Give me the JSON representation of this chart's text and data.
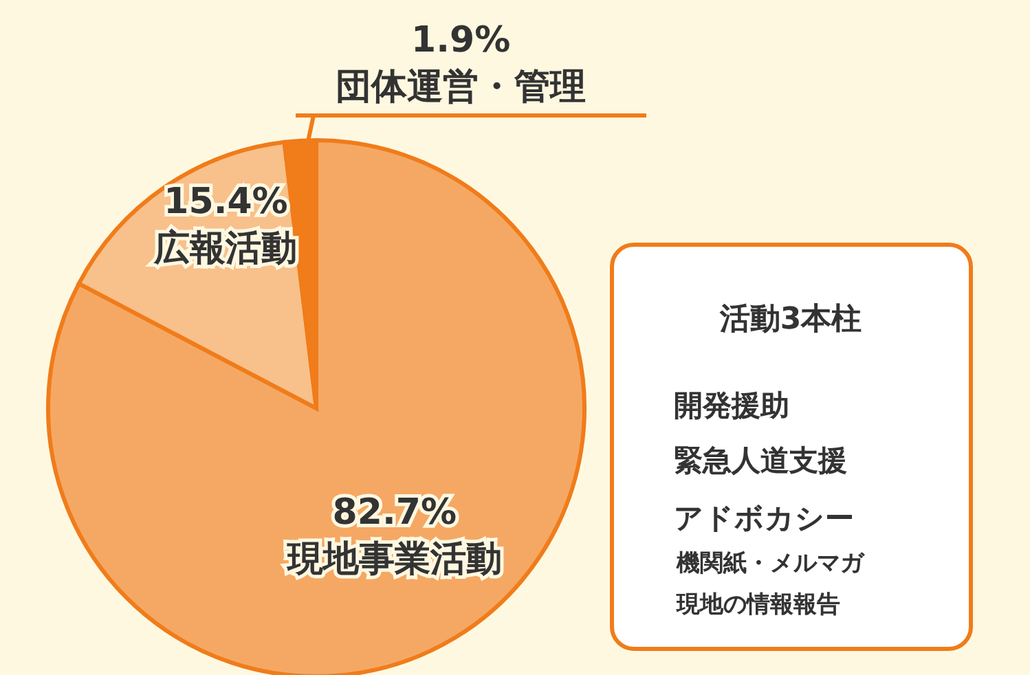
{
  "chart_data": {
    "type": "pie",
    "categories": [
      "現地事業活動",
      "広報活動",
      "団体運営・管理"
    ],
    "values": [
      82.7,
      15.4,
      1.9
    ],
    "colors": [
      "#f5a864",
      "#f8c08a",
      "#f07c1a"
    ],
    "value_labels": [
      "82.7%",
      "15.4%",
      "1.9%"
    ],
    "annotations": [
      "活動3本柱",
      "開発援助",
      "緊急人道支援",
      "アドボカシー",
      "機関紙・メルマガ",
      "現地の情報報告"
    ]
  }
}
